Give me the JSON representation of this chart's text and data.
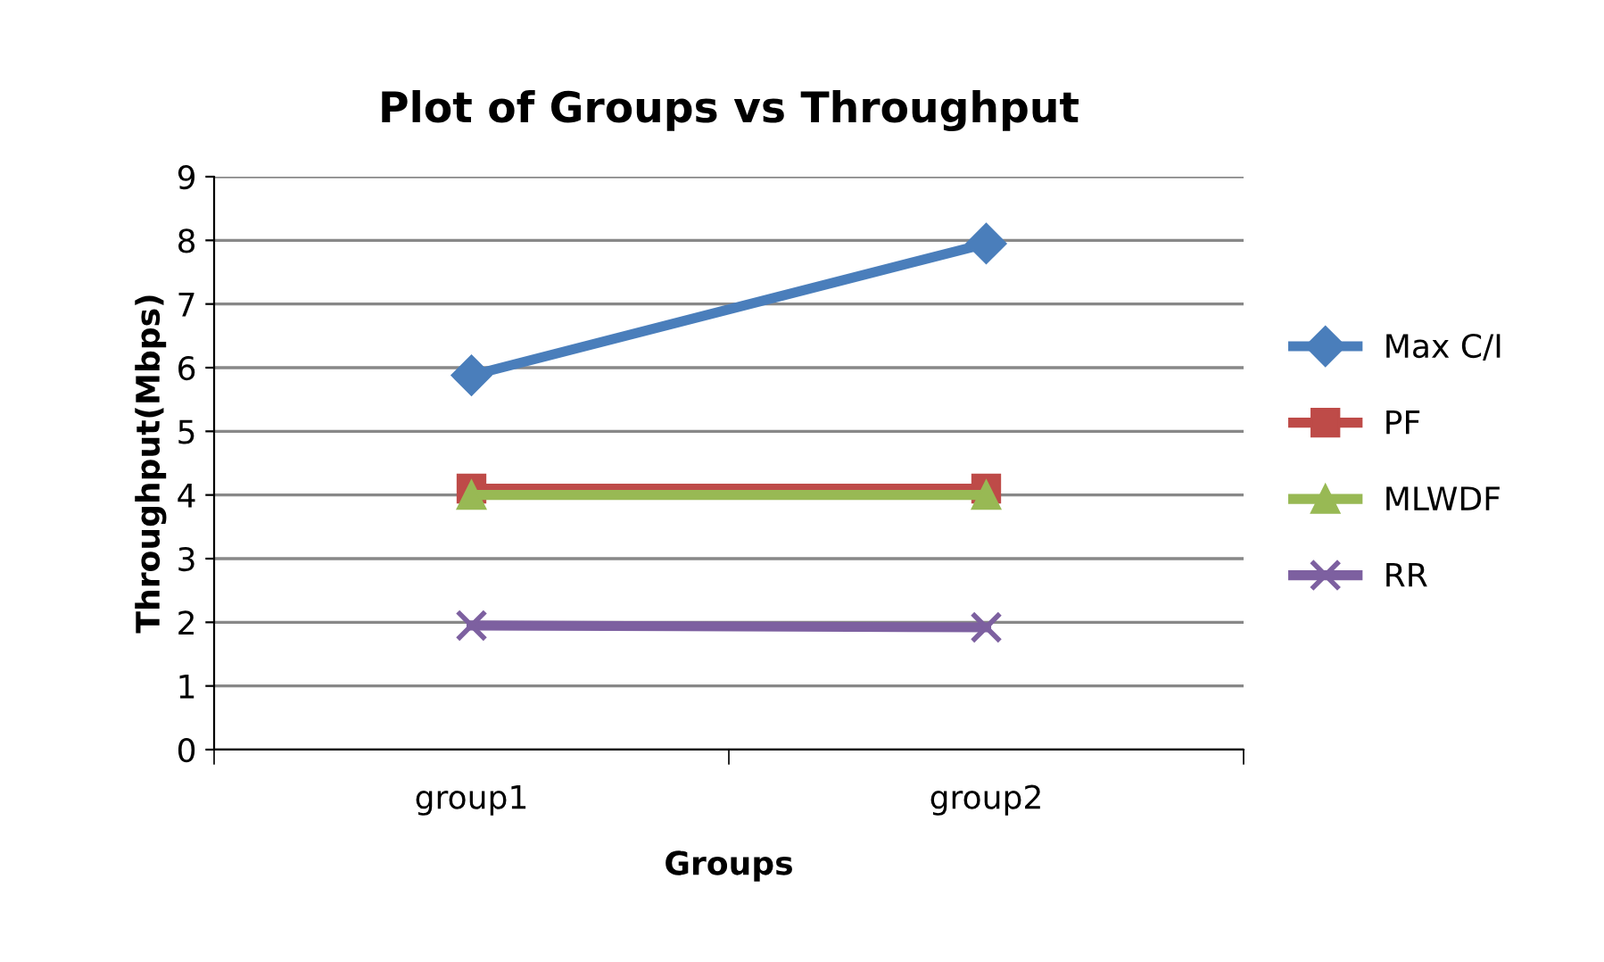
{
  "chart_data": {
    "type": "line",
    "title": "Plot of Groups vs Throughput",
    "xlabel": "Groups",
    "ylabel": "Throughput(Mbps)",
    "categories": [
      "group1",
      "group2"
    ],
    "series": [
      {
        "name": "Max C/I",
        "color": "#4a7ebb",
        "values": [
          5.88,
          7.95
        ],
        "marker": "diamond"
      },
      {
        "name": "PF",
        "color": "#be4b48",
        "values": [
          4.1,
          4.1
        ],
        "marker": "square"
      },
      {
        "name": "MLWDF",
        "color": "#98b954",
        "values": [
          4.0,
          4.0
        ],
        "marker": "triangle"
      },
      {
        "name": "RR",
        "color": "#7d60a0",
        "values": [
          1.95,
          1.92
        ],
        "marker": "cross"
      }
    ],
    "ylim": [
      0,
      9
    ],
    "yticks": [
      0,
      1,
      2,
      3,
      4,
      5,
      6,
      7,
      8,
      9
    ],
    "grid": "y",
    "legend": "right"
  }
}
